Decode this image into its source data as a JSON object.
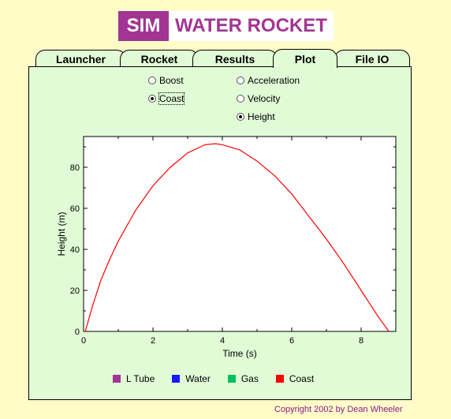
{
  "logo": {
    "sim": "SIM",
    "name": "WATER ROCKET"
  },
  "tabs": [
    {
      "label": "Launcher"
    },
    {
      "label": "Rocket"
    },
    {
      "label": "Results"
    },
    {
      "label": "Plot"
    },
    {
      "label": "File IO"
    }
  ],
  "active_tab": "Plot",
  "options": {
    "phase": [
      {
        "label": "Boost",
        "checked": false
      },
      {
        "label": "Coast",
        "checked": true
      }
    ],
    "quantity": [
      {
        "label": "Acceleration",
        "checked": false
      },
      {
        "label": "Velocity",
        "checked": false
      },
      {
        "label": "Height",
        "checked": true
      }
    ]
  },
  "chart_data": {
    "type": "line",
    "xlabel": "Time (s)",
    "ylabel": "Height (m)",
    "xlim": [
      0,
      9
    ],
    "ylim": [
      0,
      95
    ],
    "xticks": [
      0,
      2,
      4,
      6,
      8
    ],
    "yticks": [
      0,
      20,
      40,
      60,
      80
    ],
    "series": [
      {
        "name": "Coast",
        "color": "#ff0000",
        "x": [
          0.05,
          0.25,
          0.5,
          0.75,
          1.0,
          1.5,
          2.0,
          2.5,
          3.0,
          3.5,
          3.8,
          4.0,
          4.5,
          5.0,
          5.5,
          6.0,
          6.5,
          7.0,
          7.5,
          8.0,
          8.5,
          8.8
        ],
        "y": [
          0,
          12,
          25,
          35,
          44,
          59,
          71,
          80,
          87,
          91,
          91.5,
          91,
          88.5,
          83,
          76,
          67,
          56,
          45,
          33,
          20,
          7,
          0
        ]
      }
    ]
  },
  "legend": [
    {
      "label": "L Tube",
      "color": "#a23593"
    },
    {
      "label": "Water",
      "color": "#1818ff"
    },
    {
      "label": "Gas",
      "color": "#00c060"
    },
    {
      "label": "Coast",
      "color": "#ff0000"
    }
  ],
  "copyright": "Copyright 2002 by Dean Wheeler"
}
